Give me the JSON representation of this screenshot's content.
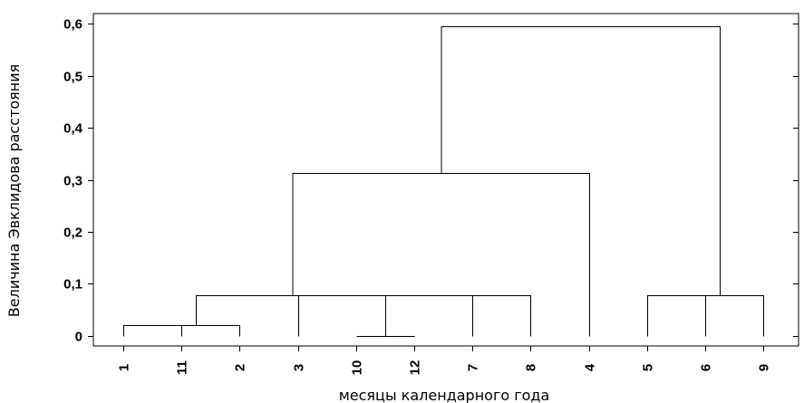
{
  "chart_data": {
    "type": "dendrogram",
    "title": "",
    "xlabel": "месяцы календарного года",
    "ylabel": "Величина Эвклидова расстояния",
    "ylim": [
      -0.02,
      0.62
    ],
    "yticks": [
      0,
      0.1,
      0.2,
      0.3,
      0.4,
      0.5,
      0.6
    ],
    "ytick_labels": [
      "0",
      "0,1",
      "0,2",
      "0,3",
      "0,4",
      "0,5",
      "0,6"
    ],
    "leaf_order": [
      "1",
      "11",
      "2",
      "3",
      "10",
      "12",
      "7",
      "8",
      "4",
      "5",
      "6",
      "9"
    ],
    "merges": [
      {
        "left": "1",
        "right": "11",
        "height": 0.02
      },
      {
        "left": "1-11",
        "right": "2",
        "height": 0.02
      },
      {
        "left": "10",
        "right": "12",
        "height": 0.0
      },
      {
        "left": "10-12",
        "right": "7",
        "height": 0.077
      },
      {
        "left": "10-12-7",
        "right": "8",
        "height": 0.077
      },
      {
        "left": "3",
        "right": "10-12-7-8",
        "height": 0.077
      },
      {
        "left": "1-11-2",
        "right": "3-10-12-7-8",
        "height": 0.077
      },
      {
        "left": "1-11-2-3-10-12-7-8",
        "right": "4",
        "height": 0.313
      },
      {
        "left": "5",
        "right": "6",
        "height": 0.077
      },
      {
        "left": "5-6",
        "right": "9",
        "height": 0.077
      },
      {
        "left": "1-11-2-3-10-12-7-8-4",
        "right": "5-6-9",
        "height": 0.595
      }
    ],
    "grid": false,
    "legend": "none"
  }
}
